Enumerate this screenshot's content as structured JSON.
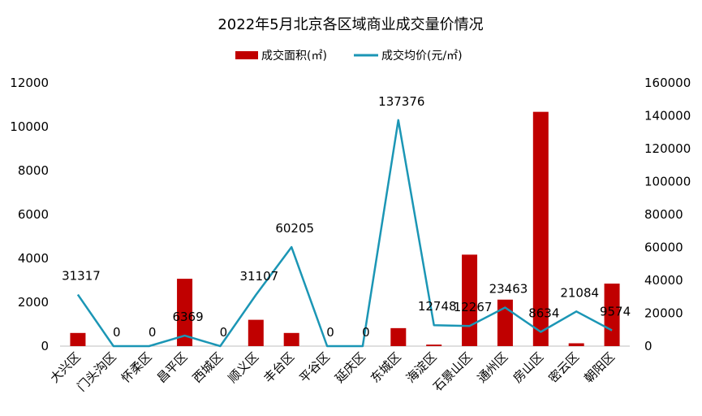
{
  "chart_data": {
    "type": "bar+line",
    "title": "2022年5月北京各区域商业成交量价情况",
    "categories": [
      "大兴区",
      "门头沟区",
      "怀柔区",
      "昌平区",
      "西城区",
      "顺义区",
      "丰台区",
      "平谷区",
      "延庆区",
      "东城区",
      "海淀区",
      "石景山区",
      "通州区",
      "房山区",
      "密云区",
      "朝阳区"
    ],
    "series": [
      {
        "name": "成交面积(㎡)",
        "type": "bar",
        "axis": "left",
        "color": "#C00000",
        "values": [
          600,
          0,
          0,
          3070,
          0,
          1200,
          600,
          0,
          0,
          820,
          70,
          4170,
          2120,
          10680,
          130,
          2850
        ]
      },
      {
        "name": "成交均价(元/㎡)",
        "type": "line",
        "axis": "right",
        "color": "#1B96B5",
        "values": [
          31317,
          0,
          0,
          6369,
          0,
          31107,
          60205,
          0,
          0,
          137376,
          12748,
          12267,
          23463,
          8634,
          21084,
          9574
        ],
        "labels": [
          "31317",
          "0",
          "0",
          "6369",
          "0",
          "31107",
          "60205",
          "0",
          "0",
          "137376",
          "12748",
          "12267",
          "23463",
          "8634",
          "21084",
          "9574"
        ]
      }
    ],
    "yleft": {
      "min": 0,
      "max": 12000,
      "ticks": [
        "0",
        "2000",
        "4000",
        "6000",
        "8000",
        "10000",
        "12000"
      ]
    },
    "yright": {
      "min": 0,
      "max": 160000,
      "ticks": [
        "0",
        "20000",
        "40000",
        "60000",
        "80000",
        "100000",
        "120000",
        "140000",
        "160000"
      ]
    },
    "legend": "top-center",
    "grid": false
  }
}
